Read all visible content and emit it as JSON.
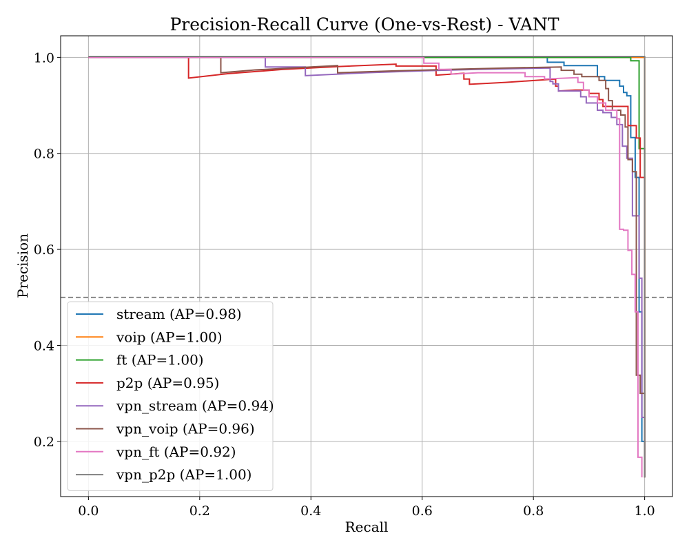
{
  "chart_data": {
    "type": "line",
    "title": "Precision-Recall Curve (One-vs-Rest) - VANT",
    "xlabel": "Recall",
    "ylabel": "Precision",
    "xlim": [
      -0.05,
      1.05
    ],
    "ylim": [
      0.085,
      1.045
    ],
    "xticks": [
      "0.0",
      "0.2",
      "0.4",
      "0.6",
      "0.8",
      "1.0"
    ],
    "yticks": [
      "0.2",
      "0.4",
      "0.6",
      "0.8",
      "1.0"
    ],
    "grid": true,
    "legend_position": "lower-left",
    "reference_line": {
      "y": 0.5,
      "style": "dashed",
      "color": "#808080"
    },
    "series": [
      {
        "name": "stream (AP=0.98)",
        "color": "#1f77b4",
        "points": [
          [
            0,
            1
          ],
          [
            0.825,
            1
          ],
          [
            0.825,
            0.99
          ],
          [
            0.855,
            0.99
          ],
          [
            0.855,
            0.983
          ],
          [
            0.915,
            0.983
          ],
          [
            0.915,
            0.96
          ],
          [
            0.928,
            0.96
          ],
          [
            0.928,
            0.952
          ],
          [
            0.955,
            0.952
          ],
          [
            0.955,
            0.94
          ],
          [
            0.962,
            0.94
          ],
          [
            0.962,
            0.927
          ],
          [
            0.968,
            0.927
          ],
          [
            0.968,
            0.92
          ],
          [
            0.975,
            0.92
          ],
          [
            0.975,
            0.833
          ],
          [
            0.983,
            0.833
          ],
          [
            0.983,
            0.75
          ],
          [
            0.99,
            0.75
          ],
          [
            0.99,
            0.47
          ],
          [
            0.995,
            0.47
          ],
          [
            0.995,
            0.2
          ],
          [
            1.0,
            0.2
          ],
          [
            1.0,
            0.125
          ]
        ]
      },
      {
        "name": "voip (AP=1.00)",
        "color": "#ff7f0e",
        "points": [
          [
            0,
            1
          ],
          [
            1.0,
            1
          ],
          [
            1.0,
            0.125
          ]
        ]
      },
      {
        "name": "ft (AP=1.00)",
        "color": "#2ca02c",
        "points": [
          [
            0,
            1
          ],
          [
            0.975,
            1
          ],
          [
            0.975,
            0.993
          ],
          [
            0.99,
            0.993
          ],
          [
            0.99,
            0.81
          ],
          [
            1.0,
            0.81
          ],
          [
            1.0,
            0.125
          ]
        ]
      },
      {
        "name": "p2p (AP=0.95)",
        "color": "#d62728",
        "points": [
          [
            0,
            1
          ],
          [
            0.18,
            1
          ],
          [
            0.18,
            0.957
          ],
          [
            0.25,
            0.966
          ],
          [
            0.35,
            0.975
          ],
          [
            0.45,
            0.981
          ],
          [
            0.553,
            0.986
          ],
          [
            0.553,
            0.982
          ],
          [
            0.625,
            0.982
          ],
          [
            0.625,
            0.963
          ],
          [
            0.675,
            0.967
          ],
          [
            0.675,
            0.955
          ],
          [
            0.685,
            0.955
          ],
          [
            0.685,
            0.944
          ],
          [
            0.75,
            0.948
          ],
          [
            0.84,
            0.955
          ],
          [
            0.84,
            0.94
          ],
          [
            0.845,
            0.94
          ],
          [
            0.845,
            0.93
          ],
          [
            0.875,
            0.932
          ],
          [
            0.9,
            0.932
          ],
          [
            0.9,
            0.925
          ],
          [
            0.918,
            0.925
          ],
          [
            0.918,
            0.912
          ],
          [
            0.925,
            0.912
          ],
          [
            0.925,
            0.898
          ],
          [
            0.97,
            0.898
          ],
          [
            0.97,
            0.858
          ],
          [
            0.985,
            0.858
          ],
          [
            0.985,
            0.832
          ],
          [
            0.992,
            0.832
          ],
          [
            0.992,
            0.75
          ],
          [
            1.0,
            0.75
          ],
          [
            1.0,
            0.125
          ]
        ]
      },
      {
        "name": "vpn_stream (AP=0.94)",
        "color": "#9467bd",
        "points": [
          [
            0,
            1
          ],
          [
            0.318,
            1
          ],
          [
            0.318,
            0.98
          ],
          [
            0.39,
            0.98
          ],
          [
            0.39,
            0.962
          ],
          [
            0.5,
            0.968
          ],
          [
            0.6,
            0.972
          ],
          [
            0.7,
            0.975
          ],
          [
            0.83,
            0.978
          ],
          [
            0.83,
            0.95
          ],
          [
            0.835,
            0.95
          ],
          [
            0.835,
            0.945
          ],
          [
            0.845,
            0.945
          ],
          [
            0.845,
            0.93
          ],
          [
            0.885,
            0.93
          ],
          [
            0.885,
            0.918
          ],
          [
            0.895,
            0.918
          ],
          [
            0.895,
            0.905
          ],
          [
            0.915,
            0.905
          ],
          [
            0.915,
            0.89
          ],
          [
            0.925,
            0.89
          ],
          [
            0.925,
            0.885
          ],
          [
            0.94,
            0.885
          ],
          [
            0.94,
            0.875
          ],
          [
            0.95,
            0.875
          ],
          [
            0.95,
            0.86
          ],
          [
            0.96,
            0.86
          ],
          [
            0.96,
            0.815
          ],
          [
            0.968,
            0.815
          ],
          [
            0.968,
            0.79
          ],
          [
            0.978,
            0.79
          ],
          [
            0.978,
            0.67
          ],
          [
            0.99,
            0.67
          ],
          [
            0.99,
            0.54
          ],
          [
            0.995,
            0.54
          ],
          [
            0.995,
            0.25
          ],
          [
            1.0,
            0.25
          ],
          [
            1.0,
            0.125
          ]
        ]
      },
      {
        "name": "vpn_voip (AP=0.96)",
        "color": "#8c564b",
        "points": [
          [
            0,
            1
          ],
          [
            0.238,
            1
          ],
          [
            0.238,
            0.968
          ],
          [
            0.3,
            0.974
          ],
          [
            0.4,
            0.98
          ],
          [
            0.448,
            0.983
          ],
          [
            0.448,
            0.968
          ],
          [
            0.55,
            0.972
          ],
          [
            0.65,
            0.975
          ],
          [
            0.75,
            0.978
          ],
          [
            0.85,
            0.98
          ],
          [
            0.85,
            0.973
          ],
          [
            0.873,
            0.973
          ],
          [
            0.873,
            0.965
          ],
          [
            0.887,
            0.965
          ],
          [
            0.887,
            0.96
          ],
          [
            0.918,
            0.96
          ],
          [
            0.918,
            0.952
          ],
          [
            0.93,
            0.952
          ],
          [
            0.93,
            0.935
          ],
          [
            0.935,
            0.935
          ],
          [
            0.935,
            0.91
          ],
          [
            0.942,
            0.91
          ],
          [
            0.942,
            0.89
          ],
          [
            0.957,
            0.89
          ],
          [
            0.957,
            0.88
          ],
          [
            0.965,
            0.88
          ],
          [
            0.965,
            0.855
          ],
          [
            0.97,
            0.855
          ],
          [
            0.97,
            0.787
          ],
          [
            0.978,
            0.787
          ],
          [
            0.978,
            0.762
          ],
          [
            0.985,
            0.762
          ],
          [
            0.985,
            0.338
          ],
          [
            0.992,
            0.338
          ],
          [
            0.992,
            0.3
          ],
          [
            1.0,
            0.3
          ],
          [
            1.0,
            0.125
          ]
        ]
      },
      {
        "name": "vpn_ft (AP=0.92)",
        "color": "#e377c2",
        "points": [
          [
            0,
            1
          ],
          [
            0.603,
            1
          ],
          [
            0.603,
            0.988
          ],
          [
            0.63,
            0.988
          ],
          [
            0.63,
            0.975
          ],
          [
            0.652,
            0.975
          ],
          [
            0.652,
            0.965
          ],
          [
            0.7,
            0.968
          ],
          [
            0.785,
            0.968
          ],
          [
            0.785,
            0.96
          ],
          [
            0.82,
            0.96
          ],
          [
            0.82,
            0.955
          ],
          [
            0.88,
            0.958
          ],
          [
            0.88,
            0.948
          ],
          [
            0.89,
            0.948
          ],
          [
            0.89,
            0.932
          ],
          [
            0.9,
            0.932
          ],
          [
            0.9,
            0.918
          ],
          [
            0.915,
            0.918
          ],
          [
            0.915,
            0.905
          ],
          [
            0.93,
            0.905
          ],
          [
            0.93,
            0.89
          ],
          [
            0.95,
            0.89
          ],
          [
            0.95,
            0.872
          ],
          [
            0.955,
            0.872
          ],
          [
            0.955,
            0.642
          ],
          [
            0.962,
            0.642
          ],
          [
            0.962,
            0.64
          ],
          [
            0.97,
            0.64
          ],
          [
            0.97,
            0.598
          ],
          [
            0.977,
            0.598
          ],
          [
            0.977,
            0.548
          ],
          [
            0.983,
            0.548
          ],
          [
            0.983,
            0.47
          ],
          [
            0.988,
            0.47
          ],
          [
            0.988,
            0.167
          ],
          [
            0.995,
            0.167
          ],
          [
            0.995,
            0.125
          ]
        ]
      },
      {
        "name": "vpn_p2p (AP=1.00)",
        "color": "#7f7f7f",
        "points": [
          [
            0,
            1.002
          ],
          [
            1.0,
            1.002
          ],
          [
            1.0,
            0.125
          ]
        ]
      }
    ]
  }
}
